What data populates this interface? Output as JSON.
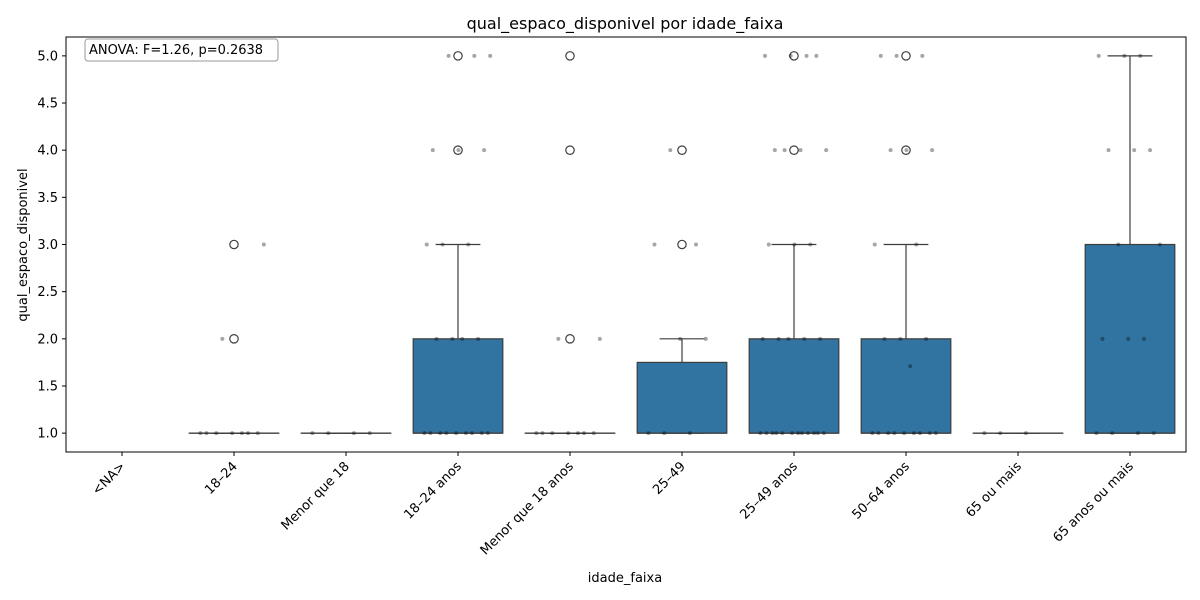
{
  "chart_data": {
    "type": "box",
    "title": "qual_espaco_disponivel por idade_faixa",
    "xlabel": "idade_faixa",
    "ylabel": "qual_espaco_disponivel",
    "ylim": [
      0.8,
      5.2
    ],
    "yticks": [
      "1.0",
      "1.5",
      "2.0",
      "2.5",
      "3.0",
      "3.5",
      "4.0",
      "4.5",
      "5.0"
    ],
    "annotation": "ANOVA: F=1.26, p=0.2638",
    "box_color": "#3274a1",
    "categories": [
      "<NA>",
      "18–24",
      "Menor que 18",
      "18–24 anos",
      "Menor que 18 anos",
      "25–49",
      "25–49 anos",
      "50–64 anos",
      "65 ou mais",
      "65 anos ou mais"
    ],
    "boxes": [
      null,
      {
        "q1": 1,
        "median": 1,
        "q3": 1,
        "whisker_low": 1,
        "whisker_high": 1,
        "outliers": [
          2,
          3
        ]
      },
      {
        "q1": 1,
        "median": 1,
        "q3": 1,
        "whisker_low": 1,
        "whisker_high": 1,
        "outliers": []
      },
      {
        "q1": 1,
        "median": 1,
        "q3": 2,
        "whisker_low": 1,
        "whisker_high": 3,
        "outliers": [
          4,
          5
        ]
      },
      {
        "q1": 1,
        "median": 1,
        "q3": 1,
        "whisker_low": 1,
        "whisker_high": 1,
        "outliers": [
          2,
          4,
          5
        ]
      },
      {
        "q1": 1,
        "median": 1,
        "q3": 1.75,
        "whisker_low": 1,
        "whisker_high": 2,
        "outliers": [
          3,
          4
        ]
      },
      {
        "q1": 1,
        "median": 1,
        "q3": 2,
        "whisker_low": 1,
        "whisker_high": 3,
        "outliers": [
          4,
          5
        ]
      },
      {
        "q1": 1,
        "median": 1,
        "q3": 2,
        "whisker_low": 1,
        "whisker_high": 3,
        "outliers": [
          4,
          5
        ]
      },
      {
        "q1": 1,
        "median": 1,
        "q3": 1,
        "whisker_low": 1,
        "whisker_high": 1,
        "outliers": []
      },
      {
        "q1": 1,
        "median": 1,
        "q3": 3,
        "whisker_low": 1,
        "whisker_high": 5,
        "outliers": []
      }
    ],
    "strip_points": [
      [],
      [
        1,
        1,
        1,
        1,
        1,
        1,
        1,
        2,
        3
      ],
      [
        1,
        1,
        1,
        1
      ],
      [
        1,
        1,
        1,
        1,
        1,
        1,
        1,
        1,
        1,
        2,
        2,
        2,
        2,
        3,
        3,
        3,
        4,
        4,
        4,
        5,
        5,
        5
      ],
      [
        1,
        1,
        1,
        1,
        1,
        1,
        1,
        2,
        2
      ],
      [
        1,
        1,
        1,
        2,
        2,
        3,
        3,
        4
      ],
      [
        1,
        1,
        1,
        1,
        1,
        1,
        1,
        1,
        1,
        1,
        1,
        1,
        2,
        2,
        2,
        2,
        2,
        3,
        3,
        3,
        4,
        4,
        4,
        4,
        5,
        5,
        5,
        5
      ],
      [
        1,
        1,
        1,
        1,
        1,
        1,
        1,
        1,
        1,
        1.71,
        2,
        2,
        2,
        3,
        3,
        4,
        4,
        4,
        5,
        5,
        5
      ],
      [
        1,
        1,
        1
      ],
      [
        1,
        1,
        1,
        1,
        2,
        2,
        2,
        3,
        3,
        4,
        4,
        4,
        5,
        5,
        5
      ]
    ]
  }
}
